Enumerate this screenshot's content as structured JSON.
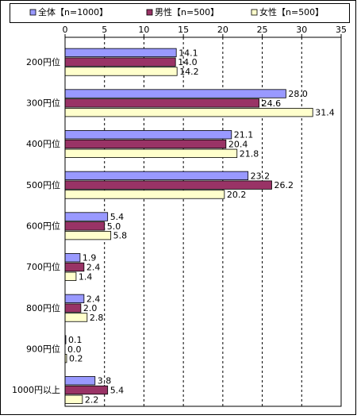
{
  "chart_data": {
    "type": "bar",
    "orientation": "horizontal",
    "categories": [
      "200円位",
      "300円位",
      "400円位",
      "500円位",
      "600円位",
      "700円位",
      "800円位",
      "900円位",
      "1000円以上"
    ],
    "series": [
      {
        "name": "全体【n=1000】",
        "color": "#9999ff",
        "values": [
          14.1,
          28.0,
          21.1,
          23.2,
          5.4,
          1.9,
          2.4,
          0.1,
          3.8
        ],
        "value_labels": [
          "14.1",
          "28.0",
          "21.1",
          "23.2",
          "5.4",
          "1.9",
          "2.4",
          "0.1",
          "3.8"
        ]
      },
      {
        "name": "男性【n=500】",
        "color": "#993366",
        "values": [
          14.0,
          24.6,
          20.4,
          26.2,
          5.0,
          2.4,
          2.0,
          0.0,
          5.4
        ],
        "value_labels": [
          "14.0",
          "24.6",
          "20.4",
          "26.2",
          "5.0",
          "2.4",
          "2.0",
          "0.0",
          "5.4"
        ]
      },
      {
        "name": "女性【n=500】",
        "color": "#ffffcc",
        "values": [
          14.2,
          31.4,
          21.8,
          20.2,
          5.8,
          1.4,
          2.8,
          0.2,
          2.2
        ],
        "value_labels": [
          "14.2",
          "31.4",
          "21.8",
          "20.2",
          "5.8",
          "1.4",
          "2.8",
          "0.2",
          "2.2"
        ]
      }
    ],
    "xlim": [
      0,
      35
    ],
    "xticks": [
      0,
      5,
      10,
      15,
      20,
      25,
      30,
      35
    ],
    "grid": true,
    "legend": "top"
  }
}
